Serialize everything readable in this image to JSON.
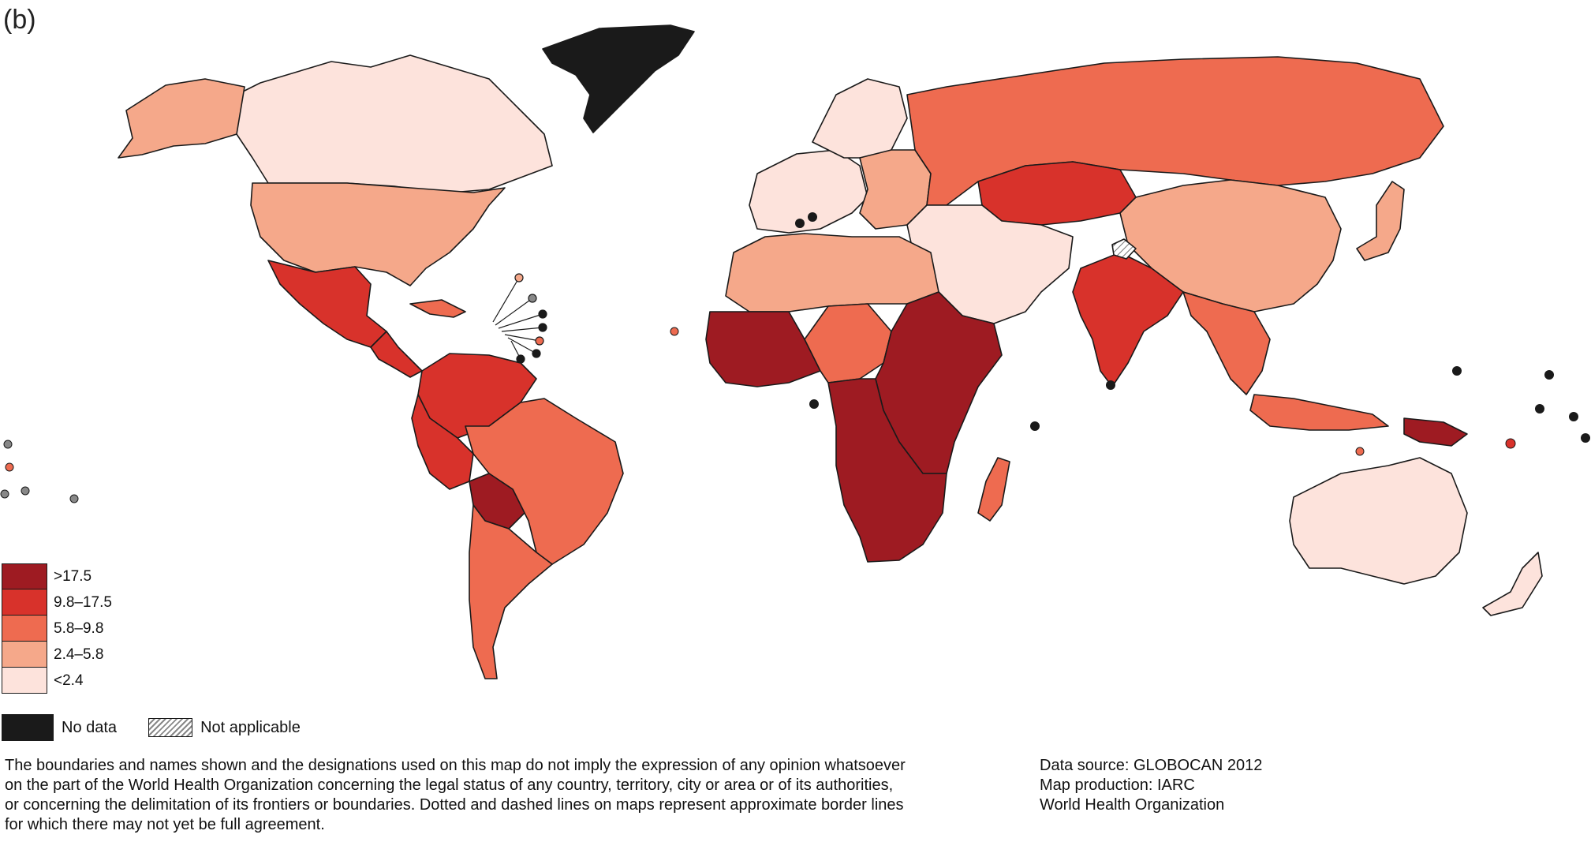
{
  "panel_label": "(b)",
  "legend": {
    "items": [
      {
        "label": ">17.5",
        "color": "#9e1b22"
      },
      {
        "label": "9.8–17.5",
        "color": "#d8322b"
      },
      {
        "label": "5.8–9.8",
        "color": "#ee6b50"
      },
      {
        "label": "2.4–5.8",
        "color": "#f5a88a"
      },
      {
        "label": "<2.4",
        "color": "#fde3dc"
      }
    ],
    "no_data_label": "No data",
    "not_applicable_label": "Not applicable",
    "no_data_color": "#1a1a1a"
  },
  "disclaimer": {
    "lines": [
      "The boundaries and names shown and the designations used on this map do not imply the expression of any opinion whatsoever",
      "on the part of the World Health Organization concerning the legal status of any country, territory, city or area or of its authorities,",
      "or concerning the delimitation of its frontiers or boundaries. Dotted and dashed lines on maps represent approximate border lines",
      "for which there may not yet be full agreement."
    ]
  },
  "credits": {
    "source": "Data source: GLOBOCAN 2012",
    "production": "Map production: IARC",
    "organization": "World Health Organization"
  },
  "regions": [
    {
      "name": "greenland",
      "class": "nodata"
    },
    {
      "name": "canada",
      "class": "c5"
    },
    {
      "name": "alaska",
      "class": "c4"
    },
    {
      "name": "usa",
      "class": "c4"
    },
    {
      "name": "mexico",
      "class": "c2"
    },
    {
      "name": "central-america",
      "class": "c2"
    },
    {
      "name": "caribbean",
      "class": "c3"
    },
    {
      "name": "northern-south-america",
      "class": "c2"
    },
    {
      "name": "brazil",
      "class": "c3"
    },
    {
      "name": "andes",
      "class": "c2"
    },
    {
      "name": "bolivia",
      "class": "c1"
    },
    {
      "name": "southern-cone",
      "class": "c3"
    },
    {
      "name": "western-europe",
      "class": "c5"
    },
    {
      "name": "eastern-europe",
      "class": "c4"
    },
    {
      "name": "scandinavia",
      "class": "c5"
    },
    {
      "name": "russia",
      "class": "c3"
    },
    {
      "name": "kazakhstan",
      "class": "c2"
    },
    {
      "name": "china",
      "class": "c4"
    },
    {
      "name": "middle-east",
      "class": "c5"
    },
    {
      "name": "india",
      "class": "c2"
    },
    {
      "name": "southeast-asia",
      "class": "c3"
    },
    {
      "name": "japan",
      "class": "c4"
    },
    {
      "name": "north-africa",
      "class": "c4"
    },
    {
      "name": "west-africa",
      "class": "c1"
    },
    {
      "name": "central-africa",
      "class": "c3"
    },
    {
      "name": "east-africa",
      "class": "c1"
    },
    {
      "name": "southern-africa",
      "class": "c1"
    },
    {
      "name": "madagascar",
      "class": "c3"
    },
    {
      "name": "indonesia",
      "class": "c3"
    },
    {
      "name": "papua-new-guinea",
      "class": "c1"
    },
    {
      "name": "australia",
      "class": "c5"
    },
    {
      "name": "new-zealand",
      "class": "c5"
    },
    {
      "name": "kashmir",
      "class": "na"
    }
  ]
}
